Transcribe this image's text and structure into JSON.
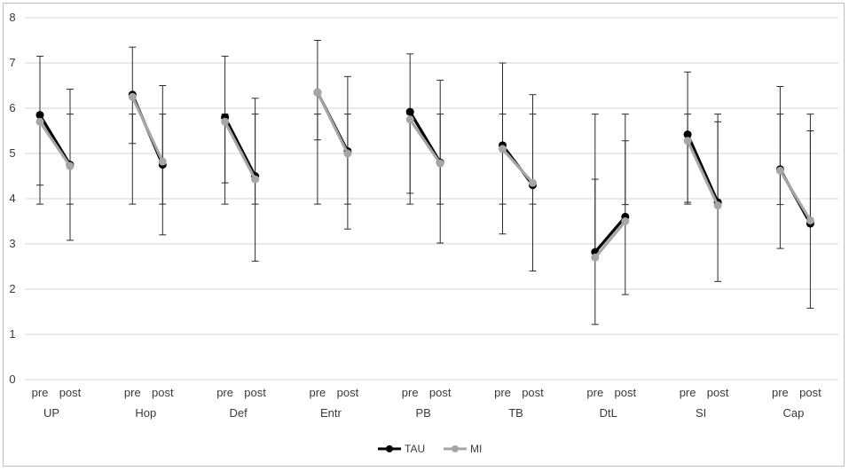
{
  "chart_data": {
    "type": "line",
    "title": "",
    "xlabel": "",
    "ylabel": "",
    "ylim": [
      0,
      8
    ],
    "yticks": [
      0,
      1,
      2,
      3,
      4,
      5,
      6,
      7,
      8
    ],
    "grid": "horizontal",
    "legend_position": "bottom-center",
    "time_labels": [
      "pre",
      "post"
    ],
    "groups": [
      "UP",
      "Hop",
      "Def",
      "Entr",
      "PB",
      "TB",
      "DtL",
      "SI",
      "Cap"
    ],
    "series": [
      {
        "name": "TAU",
        "color": "#000000",
        "values": [
          [
            5.85,
            4.75
          ],
          [
            6.3,
            4.75
          ],
          [
            5.8,
            4.5
          ],
          [
            6.35,
            5.05
          ],
          [
            5.92,
            4.8
          ],
          [
            5.18,
            4.3
          ],
          [
            2.82,
            3.6
          ],
          [
            5.42,
            3.92
          ],
          [
            4.65,
            3.45
          ]
        ],
        "err_low": [
          [
            3.88,
            3.88
          ],
          [
            3.88,
            3.88
          ],
          [
            3.88,
            3.88
          ],
          [
            3.88,
            3.88
          ],
          [
            3.88,
            3.88
          ],
          [
            3.88,
            3.88
          ],
          [
            1.22,
            1.88
          ],
          [
            3.88,
            2.17
          ],
          [
            2.9,
            1.58
          ]
        ],
        "err_high": [
          [
            7.15,
            6.42
          ],
          [
            7.35,
            6.5
          ],
          [
            7.15,
            6.22
          ],
          [
            7.5,
            6.7
          ],
          [
            7.2,
            6.62
          ],
          [
            7.0,
            6.3
          ],
          [
            5.87,
            5.87
          ],
          [
            6.8,
            5.87
          ],
          [
            6.48,
            5.87
          ]
        ]
      },
      {
        "name": "MI",
        "color": "#a6a6a6",
        "values": [
          [
            5.7,
            4.72
          ],
          [
            6.25,
            4.82
          ],
          [
            5.7,
            4.43
          ],
          [
            6.35,
            5.0
          ],
          [
            5.75,
            4.78
          ],
          [
            5.1,
            4.35
          ],
          [
            2.7,
            3.5
          ],
          [
            5.28,
            3.85
          ],
          [
            4.62,
            3.52
          ]
        ],
        "err_low": [
          [
            4.3,
            3.08
          ],
          [
            5.22,
            3.2
          ],
          [
            4.35,
            2.62
          ],
          [
            5.3,
            3.33
          ],
          [
            4.12,
            3.02
          ],
          [
            3.22,
            2.4
          ],
          [
            2.7,
            3.87
          ],
          [
            3.92,
            3.85
          ],
          [
            3.87,
            3.52
          ]
        ],
        "err_high": [
          [
            5.87,
            5.87
          ],
          [
            5.87,
            5.87
          ],
          [
            5.87,
            5.87
          ],
          [
            5.87,
            5.87
          ],
          [
            5.87,
            5.87
          ],
          [
            5.87,
            5.87
          ],
          [
            4.43,
            5.28
          ],
          [
            5.87,
            5.7
          ],
          [
            5.87,
            5.5
          ]
        ]
      }
    ]
  }
}
